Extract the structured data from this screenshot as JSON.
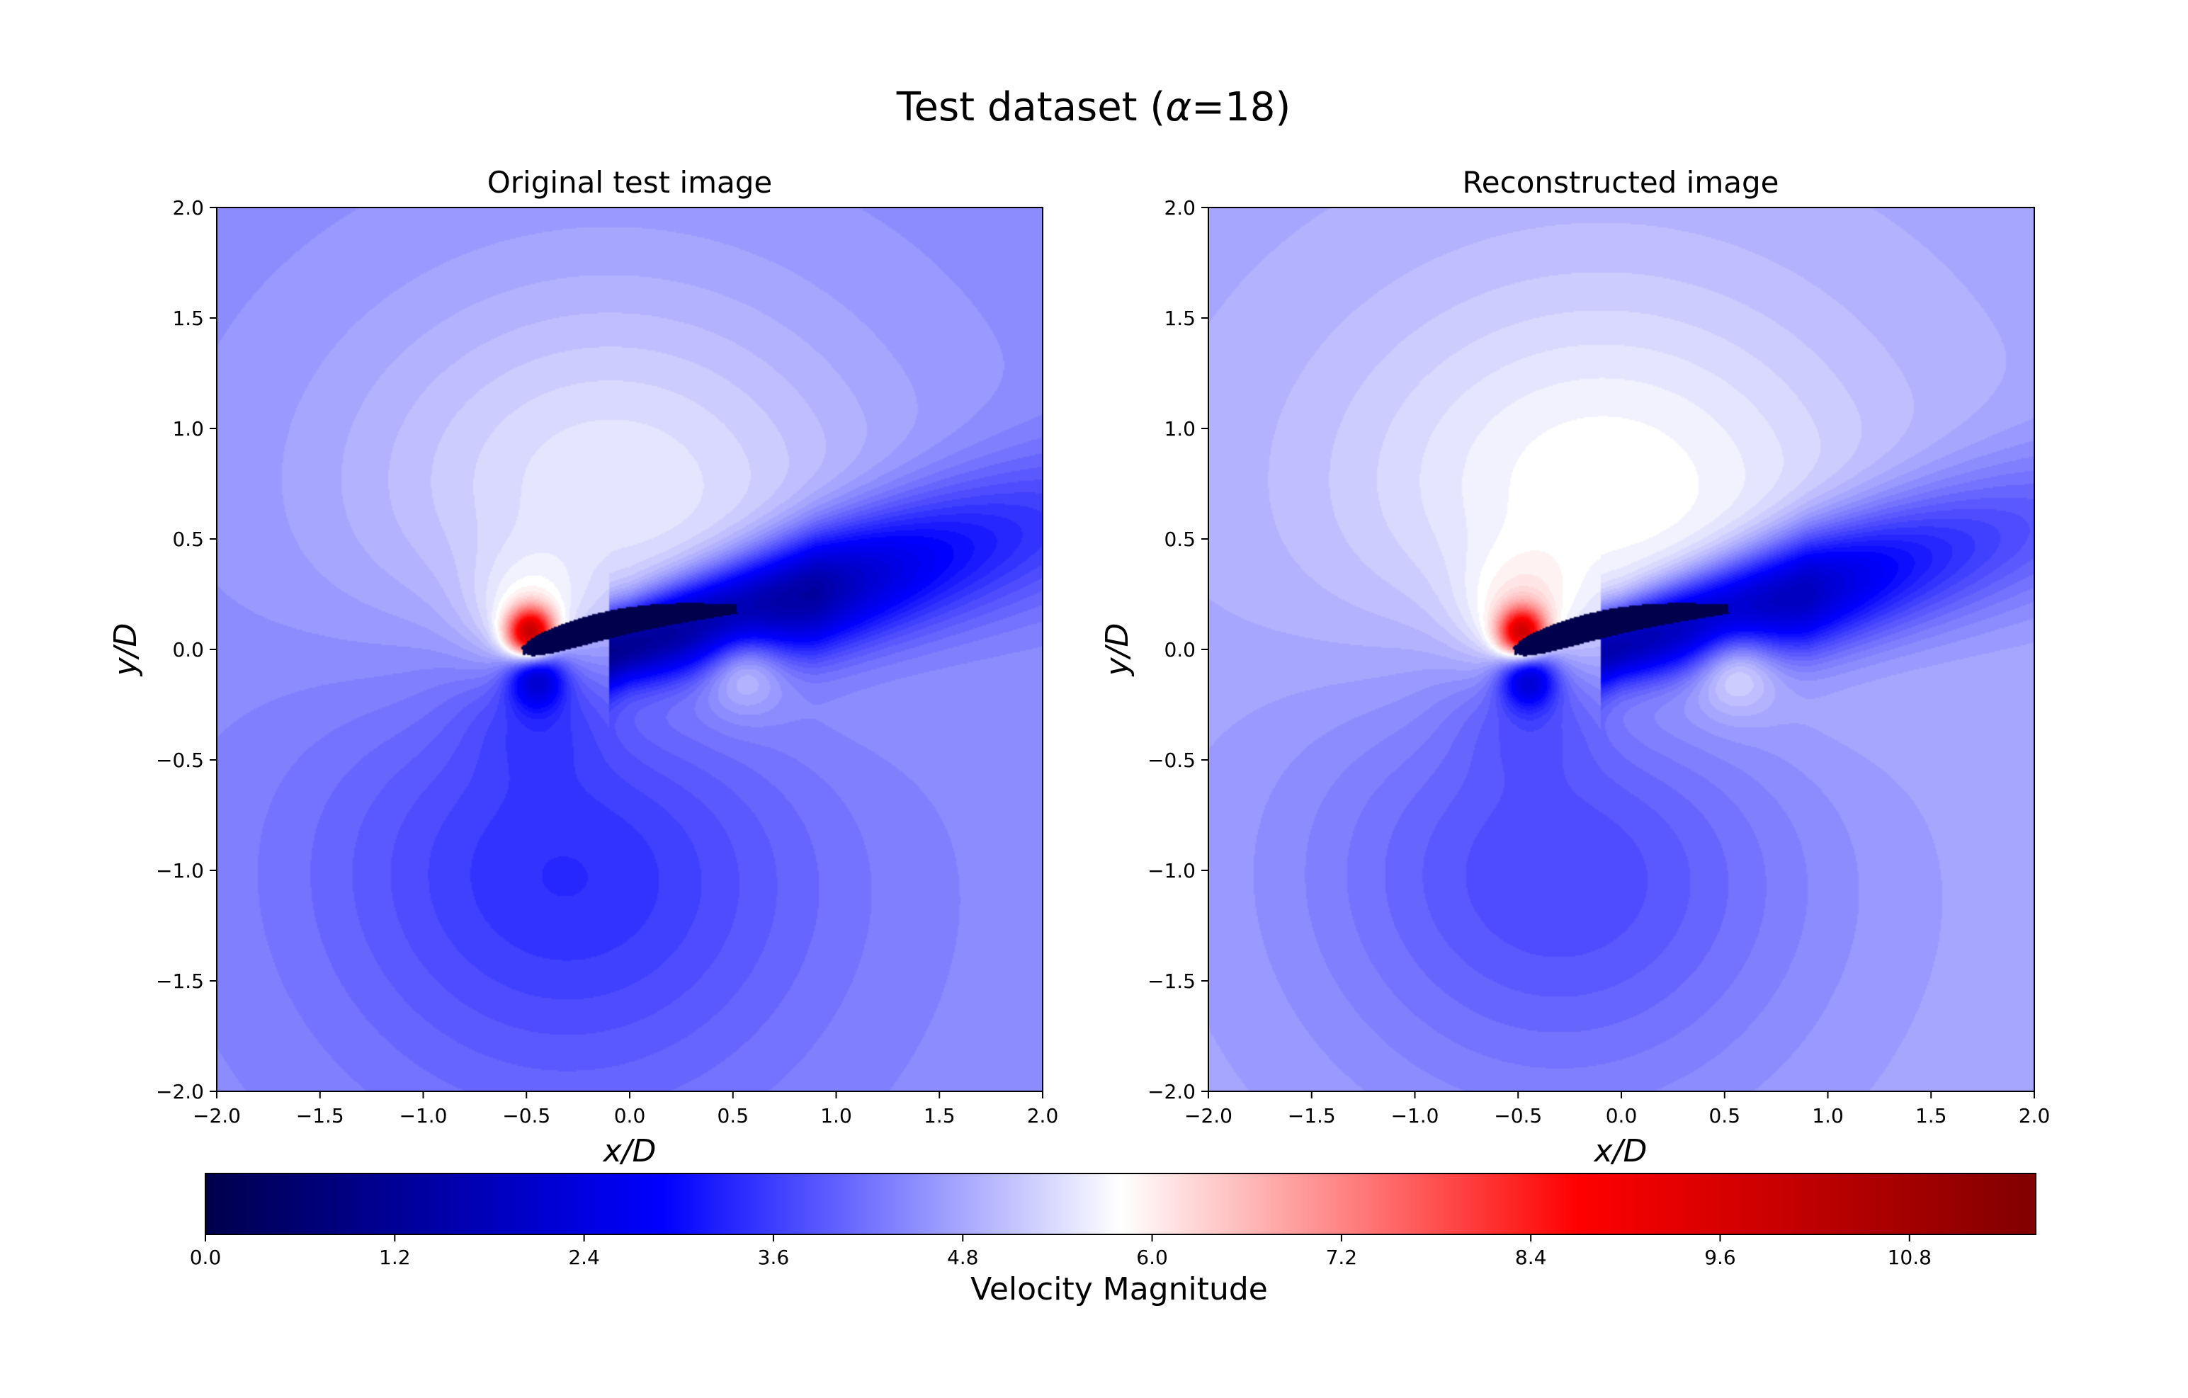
{
  "figure": {
    "title_prefix": "Test dataset (",
    "title_symbol": "α",
    "title_suffix": "=18)"
  },
  "chart_data": [
    {
      "type": "heatmap",
      "title": "Original test image",
      "xlabel": "x/D",
      "ylabel": "y/D",
      "xlim": [
        -2.0,
        2.0
      ],
      "ylim": [
        -2.0,
        2.0
      ],
      "xticks": [
        "−2.0",
        "−1.5",
        "−1.0",
        "−0.5",
        "0.0",
        "0.5",
        "1.0",
        "1.5",
        "2.0"
      ],
      "yticks": [
        "−2.0",
        "−1.5",
        "−1.0",
        "−0.5",
        "0.0",
        "0.5",
        "1.0",
        "1.5",
        "2.0"
      ],
      "field": {
        "freestream": 4.5,
        "airfoil_leading_edge": [
          -0.5,
          0.0
        ],
        "airfoil_chord": 1.0,
        "angle_of_attack_deg": 18,
        "stagnation_peak": 9.2,
        "suction_min": 2.3,
        "wake_min": 0.5
      }
    },
    {
      "type": "heatmap",
      "title": "Reconstructed image",
      "xlabel": "x/D",
      "ylabel": "y/D",
      "xlim": [
        -2.0,
        2.0
      ],
      "ylim": [
        -2.0,
        2.0
      ],
      "xticks": [
        "−2.0",
        "−1.5",
        "−1.0",
        "−0.5",
        "0.0",
        "0.5",
        "1.0",
        "1.5",
        "2.0"
      ],
      "yticks": [
        "−2.0",
        "−1.5",
        "−1.0",
        "−0.5",
        "0.0",
        "0.5",
        "1.0",
        "1.5",
        "2.0"
      ],
      "field": {
        "freestream": 4.8,
        "airfoil_leading_edge": [
          -0.5,
          0.0
        ],
        "airfoil_chord": 1.0,
        "angle_of_attack_deg": 18,
        "stagnation_peak": 9.0,
        "suction_min": 2.4,
        "wake_min": 1.0
      }
    }
  ],
  "colorbar": {
    "label": "Velocity Magnitude",
    "vmin": 0.0,
    "vmax": 11.6,
    "ticks": [
      "0.0",
      "1.2",
      "2.4",
      "3.6",
      "4.8",
      "6.0",
      "7.2",
      "8.4",
      "9.6",
      "10.8"
    ],
    "colormap": "seismic",
    "colors": [
      "#00004c",
      "#0000ff",
      "#ffffff",
      "#ff0000",
      "#800000"
    ]
  }
}
